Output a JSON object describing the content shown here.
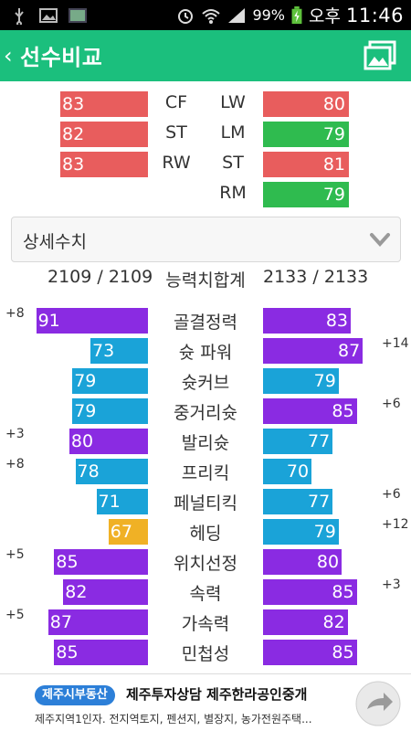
{
  "statusbar": {
    "battery_pct": "99%",
    "ampm": "오후",
    "time": "11:46"
  },
  "appbar": {
    "title": "선수비교"
  },
  "positions": {
    "rows": [
      {
        "left_value": "83",
        "left_color": "red",
        "left_pos": "CF",
        "right_pos": "LW",
        "right_value": "80",
        "right_color": "red"
      },
      {
        "left_value": "82",
        "left_color": "red",
        "left_pos": "ST",
        "right_pos": "LM",
        "right_value": "79",
        "right_color": "green"
      },
      {
        "left_value": "83",
        "left_color": "red",
        "left_pos": "RW",
        "right_pos": "ST",
        "right_value": "81",
        "right_color": "red"
      },
      {
        "left_value": "",
        "left_color": "",
        "left_pos": "",
        "right_pos": "RM",
        "right_value": "79",
        "right_color": "green"
      }
    ]
  },
  "dropdown": {
    "label": "상세수치"
  },
  "totals": {
    "left": "2109 / 2109",
    "label": "능력치합계",
    "right": "2133 / 2133"
  },
  "stats": [
    {
      "name": "골결정력",
      "left": "91",
      "left_color": "purple",
      "left_diff": "+8",
      "right": "83",
      "right_color": "purple",
      "right_diff": ""
    },
    {
      "name": "슛 파워",
      "left": "73",
      "left_color": "blue",
      "left_diff": "",
      "right": "87",
      "right_color": "purple",
      "right_diff": "+14"
    },
    {
      "name": "슛커브",
      "left": "79",
      "left_color": "blue",
      "left_diff": "",
      "right": "79",
      "right_color": "blue",
      "right_diff": ""
    },
    {
      "name": "중거리슛",
      "left": "79",
      "left_color": "blue",
      "left_diff": "",
      "right": "85",
      "right_color": "purple",
      "right_diff": "+6"
    },
    {
      "name": "발리슛",
      "left": "80",
      "left_color": "purple",
      "left_diff": "+3",
      "right": "77",
      "right_color": "blue",
      "right_diff": ""
    },
    {
      "name": "프리킥",
      "left": "78",
      "left_color": "blue",
      "left_diff": "+8",
      "right": "70",
      "right_color": "blue",
      "right_diff": ""
    },
    {
      "name": "페널티킥",
      "left": "71",
      "left_color": "blue",
      "left_diff": "",
      "right": "77",
      "right_color": "blue",
      "right_diff": "+6"
    },
    {
      "name": "헤딩",
      "left": "67",
      "left_color": "orange",
      "left_diff": "",
      "right": "79",
      "right_color": "blue",
      "right_diff": "+12"
    },
    {
      "name": "위치선정",
      "left": "85",
      "left_color": "purple",
      "left_diff": "+5",
      "right": "80",
      "right_color": "purple",
      "right_diff": ""
    },
    {
      "name": "속력",
      "left": "82",
      "left_color": "purple",
      "left_diff": "",
      "right": "85",
      "right_color": "purple",
      "right_diff": "+3"
    },
    {
      "name": "가속력",
      "left": "87",
      "left_color": "purple",
      "left_diff": "+5",
      "right": "82",
      "right_color": "purple",
      "right_diff": ""
    },
    {
      "name": "민첩성",
      "left": "85",
      "left_color": "purple",
      "left_diff": "",
      "right": "85",
      "right_color": "purple",
      "right_diff": ""
    }
  ],
  "ad": {
    "badge": "제주시부동산",
    "title": "제주투자상담 제주한라공인중개",
    "subtitle": "제주지역1인자. 전지역토지, 펜션지, 별장지, 농가전원주택..."
  },
  "colors": {
    "accent": "#1bbf7d",
    "red": "#e85d5d",
    "green": "#2fbb4f",
    "purple": "#8a2be2",
    "blue": "#1aa3d8",
    "orange": "#f0b125"
  }
}
